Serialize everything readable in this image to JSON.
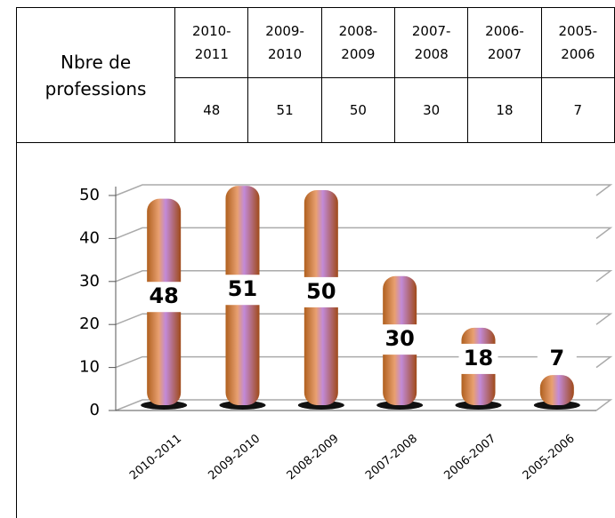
{
  "table": {
    "header": "Nbre de professions",
    "columns": [
      "2010-2011",
      "2009-2010",
      "2008-2009",
      "2007-2008",
      "2006-2007",
      "2005-2006"
    ],
    "values": [
      48,
      51,
      50,
      30,
      18,
      7
    ]
  },
  "chart_data": {
    "type": "bar",
    "categories": [
      "2010-2011",
      "2009-2010",
      "2008-2009",
      "2007-2008",
      "2006-2007",
      "2005-2006"
    ],
    "values": [
      48,
      51,
      50,
      30,
      18,
      7
    ],
    "ylim": [
      0,
      50
    ],
    "yticks": [
      0,
      10,
      20,
      30,
      40,
      50
    ],
    "grid": true
  }
}
